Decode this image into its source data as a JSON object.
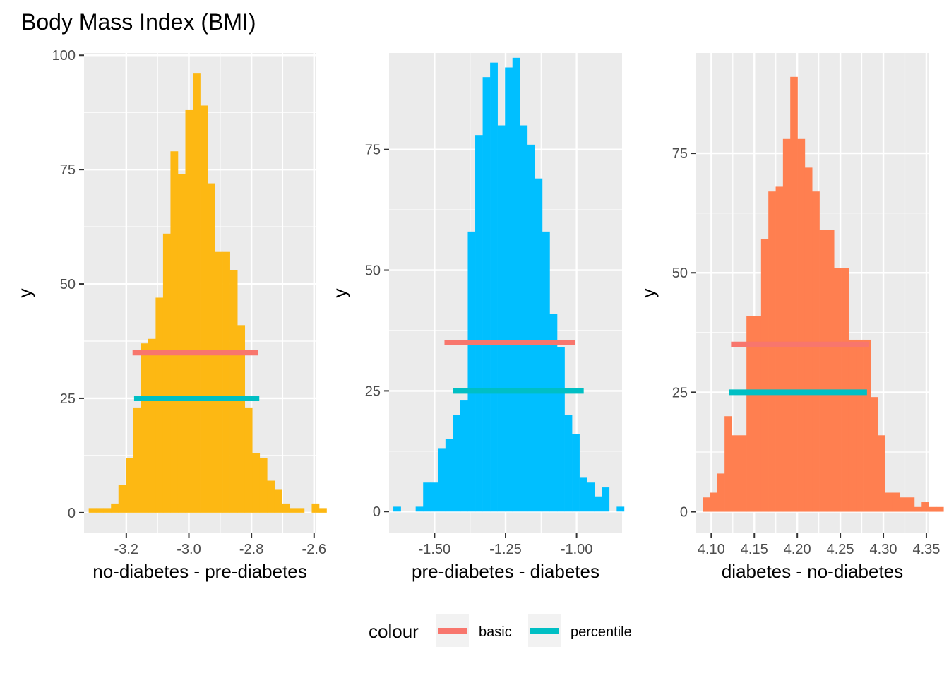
{
  "title": "Body Mass Index (BMI)",
  "legend": {
    "title": "colour",
    "position": "bottom",
    "items": [
      {
        "label": "basic",
        "color": "#F8766D"
      },
      {
        "label": "percentile",
        "color": "#00BFC4"
      }
    ]
  },
  "chart_data": [
    {
      "type": "bar",
      "subtype": "histogram",
      "xlabel": "no-diabetes - pre-diabetes",
      "ylabel": "y",
      "fill": "#FDB813",
      "xlim": [
        -3.335,
        -2.595
      ],
      "ylim": [
        -4.5,
        100.5
      ],
      "xticks": [
        -3.2,
        -3.0,
        -2.8,
        -2.6
      ],
      "xtick_labels": [
        "-3.2",
        "-3.0",
        "-2.8",
        "-2.6"
      ],
      "yticks": [
        0,
        25,
        50,
        75,
        100
      ],
      "ytick_labels": [
        "0",
        "25",
        "50",
        "75",
        "100"
      ],
      "grid": true,
      "bin_start": -3.32,
      "bin_width": 0.02375,
      "counts": [
        1,
        1,
        1,
        2,
        6,
        12,
        23,
        37,
        38,
        47,
        61,
        79,
        74,
        88,
        96,
        89,
        72,
        57,
        57,
        53,
        41,
        23,
        13,
        12,
        7,
        5,
        2,
        1,
        1,
        0,
        2,
        1
      ],
      "segments": [
        {
          "series": "basic",
          "x_start": -3.18,
          "x_end": -2.78,
          "y": 35
        },
        {
          "series": "percentile",
          "x_start": -3.175,
          "x_end": -2.775,
          "y": 25
        }
      ]
    },
    {
      "type": "bar",
      "subtype": "histogram",
      "xlabel": "pre-diabetes - diabetes",
      "ylabel": "y",
      "fill": "#00BFFF",
      "xlim": [
        -1.66,
        -0.84
      ],
      "ylim": [
        -4.5,
        95
      ],
      "xticks": [
        -1.5,
        -1.25,
        -1.0
      ],
      "xtick_labels": [
        "-1.50",
        "-1.25",
        "-1.00"
      ],
      "yticks": [
        0,
        25,
        50,
        75
      ],
      "ytick_labels": [
        "0",
        "25",
        "50",
        "75"
      ],
      "grid": true,
      "bin_start": -1.645,
      "bin_width": 0.0262,
      "counts": [
        1,
        0,
        0,
        1,
        6,
        6,
        13,
        15,
        20,
        23,
        58,
        78,
        90,
        93,
        80,
        92,
        94,
        80,
        76,
        69,
        58,
        41,
        34,
        20,
        16,
        7,
        6,
        3,
        5,
        0,
        1
      ],
      "segments": [
        {
          "series": "basic",
          "x_start": -1.465,
          "x_end": -1.005,
          "y": 35
        },
        {
          "series": "percentile",
          "x_start": -1.435,
          "x_end": -0.975,
          "y": 25
        }
      ]
    },
    {
      "type": "bar",
      "subtype": "histogram",
      "xlabel": "diabetes - no-diabetes",
      "ylabel": "y",
      "fill": "#FF7F50",
      "xlim": [
        4.0825,
        4.3525
      ],
      "ylim": [
        -4.5,
        96
      ],
      "xticks": [
        4.1,
        4.15,
        4.2,
        4.25,
        4.3,
        4.35
      ],
      "xtick_labels": [
        "4.10",
        "4.15",
        "4.20",
        "4.25",
        "4.30",
        "4.35"
      ],
      "yticks": [
        0,
        25,
        50,
        75
      ],
      "ytick_labels": [
        "0",
        "25",
        "50",
        "75"
      ],
      "grid": true,
      "bin_start": 4.09,
      "bin_width": 0.008484,
      "counts": [
        3,
        4,
        8,
        20,
        16,
        16,
        41,
        41,
        57,
        67,
        68,
        78,
        91,
        78,
        72,
        67,
        59,
        59,
        51,
        51,
        36,
        36,
        36,
        24,
        16,
        4,
        4,
        3,
        3,
        1,
        2,
        1,
        1
      ],
      "segments": [
        {
          "series": "basic",
          "x_start": 4.123,
          "x_end": 4.283,
          "y": 35
        },
        {
          "series": "percentile",
          "x_start": 4.121,
          "x_end": 4.281,
          "y": 25
        }
      ]
    }
  ]
}
